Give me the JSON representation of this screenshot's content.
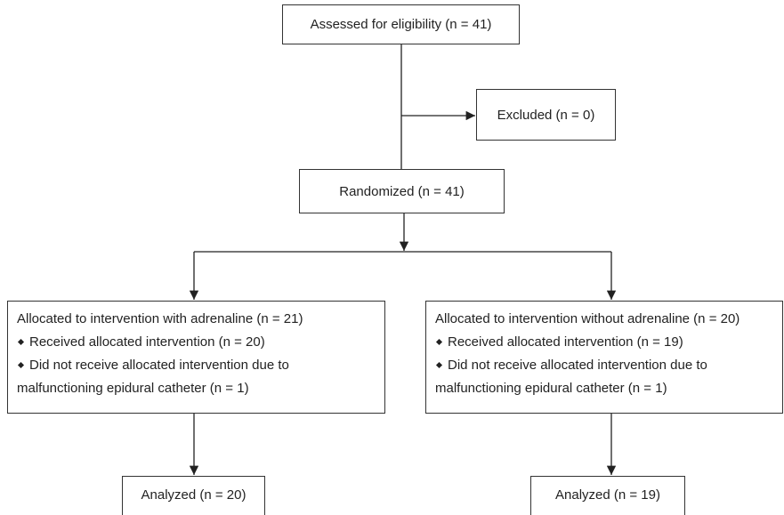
{
  "nodes": [
    {
      "label": "Assessed for eligibility (n = 41)"
    },
    {
      "label": "Excluded (n = 0)"
    },
    {
      "label": "Randomized (n = 41)"
    },
    {
      "label": "Allocated to intervention with adrenaline (n = 21)",
      "items": [
        [
          "Received allocated intervention (n = 20)"
        ],
        [
          "Did not receive allocated intervention due to",
          "malfunctioning epidural catheter (n = 1)"
        ]
      ]
    },
    {
      "label": "Allocated to intervention without adrenaline (n = 20)",
      "items": [
        [
          "Received allocated intervention (n = 19)"
        ],
        [
          "Did not receive allocated intervention due to",
          "malfunctioning epidural catheter (n = 1)"
        ]
      ]
    },
    {
      "label": "Analyzed (n = 20)"
    },
    {
      "label": "Analyzed (n = 19)"
    }
  ]
}
